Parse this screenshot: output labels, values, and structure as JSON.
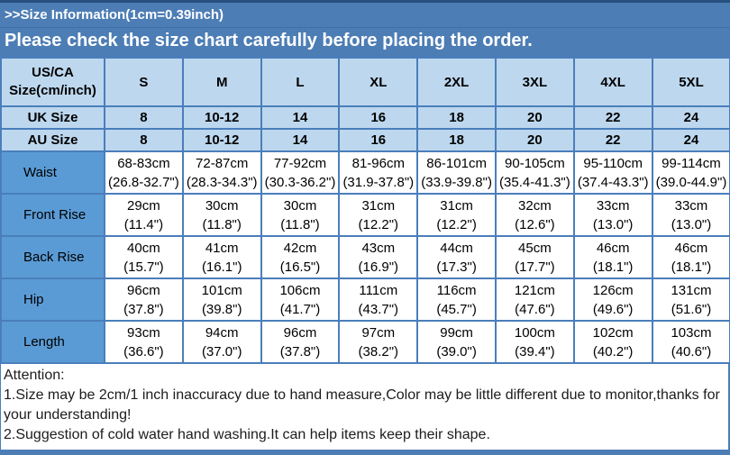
{
  "header": {
    "size_info": ">>Size Information(1cm=0.39inch)",
    "notice": "Please check the size chart carefully before placing the order."
  },
  "table": {
    "corner_line1": "US/CA",
    "corner_line2": "Size(cm/inch)",
    "columns": [
      "S",
      "M",
      "L",
      "XL",
      "2XL",
      "3XL",
      "4XL",
      "5XL"
    ],
    "uk": {
      "label": "UK Size",
      "values": [
        "8",
        "10-12",
        "14",
        "16",
        "18",
        "20",
        "22",
        "24"
      ]
    },
    "au": {
      "label": "AU Size",
      "values": [
        "8",
        "10-12",
        "14",
        "16",
        "18",
        "20",
        "22",
        "24"
      ]
    },
    "rows": [
      {
        "label": "Waist",
        "cm": [
          "68-83cm",
          "72-87cm",
          "77-92cm",
          "81-96cm",
          "86-101cm",
          "90-105cm",
          "95-110cm",
          "99-114cm"
        ],
        "in": [
          "(26.8-32.7\")",
          "(28.3-34.3\")",
          "(30.3-36.2\")",
          "(31.9-37.8\")",
          "(33.9-39.8\")",
          "(35.4-41.3\")",
          "(37.4-43.3\")",
          "(39.0-44.9\")"
        ]
      },
      {
        "label": "Front Rise",
        "cm": [
          "29cm",
          "30cm",
          "30cm",
          "31cm",
          "31cm",
          "32cm",
          "33cm",
          "33cm"
        ],
        "in": [
          "(11.4\")",
          "(11.8\")",
          "(11.8\")",
          "(12.2\")",
          "(12.2\")",
          "(12.6\")",
          "(13.0\")",
          "(13.0\")"
        ]
      },
      {
        "label": "Back Rise",
        "cm": [
          "40cm",
          "41cm",
          "42cm",
          "43cm",
          "44cm",
          "45cm",
          "46cm",
          "46cm"
        ],
        "in": [
          "(15.7\")",
          "(16.1\")",
          "(16.5\")",
          "(16.9\")",
          "(17.3\")",
          "(17.7\")",
          "(18.1\")",
          "(18.1\")"
        ]
      },
      {
        "label": "Hip",
        "cm": [
          "96cm",
          "101cm",
          "106cm",
          "111cm",
          "116cm",
          "121cm",
          "126cm",
          "131cm"
        ],
        "in": [
          "(37.8\")",
          "(39.8\")",
          "(41.7\")",
          "(43.7\")",
          "(45.7\")",
          "(47.6\")",
          "(49.6\")",
          "(51.6\")"
        ]
      },
      {
        "label": "Length",
        "cm": [
          "93cm",
          "94cm",
          "96cm",
          "97cm",
          "99cm",
          "100cm",
          "102cm",
          "103cm"
        ],
        "in": [
          "(36.6\")",
          "(37.0\")",
          "(37.8\")",
          "(38.2\")",
          "(39.0\")",
          "(39.4\")",
          "(40.2\")",
          "(40.6\")"
        ]
      }
    ]
  },
  "attention": {
    "title": "Attention:",
    "note1": "1.Size may be 2cm/1 inch inaccuracy due to hand measure,Color may be little different due to monitor,thanks for your understanding!",
    "note2": "2.Suggestion of cold water hand washing.It can help items keep their shape."
  },
  "colors": {
    "banner_blue": "#4d7db5",
    "light_cell_blue": "#bdd7ee",
    "label_cell_blue": "#5b9bd5",
    "border_blue": "#4a7ebb",
    "top_border_navy": "#26507f"
  }
}
